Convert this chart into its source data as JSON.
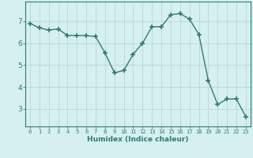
{
  "x": [
    0,
    1,
    2,
    3,
    4,
    5,
    6,
    7,
    8,
    9,
    10,
    11,
    12,
    13,
    14,
    15,
    16,
    17,
    18,
    19,
    20,
    21,
    22,
    23
  ],
  "y": [
    6.9,
    6.7,
    6.6,
    6.65,
    6.35,
    6.35,
    6.35,
    6.3,
    5.55,
    4.65,
    4.75,
    5.5,
    6.0,
    6.75,
    6.75,
    7.3,
    7.35,
    7.1,
    6.4,
    4.3,
    3.2,
    3.45,
    3.45,
    2.65
  ],
  "line_color": "#2e7d6e",
  "marker": "+",
  "marker_size": 4,
  "bg_color": "#d6f0ef",
  "grid_color": "#b8d8d4",
  "axis_color": "#2e7d6e",
  "xlabel": "Humidex (Indice chaleur)",
  "xlim": [
    -0.5,
    23.5
  ],
  "ylim": [
    2.2,
    7.9
  ],
  "yticks": [
    3,
    4,
    5,
    6,
    7
  ],
  "xticks": [
    0,
    1,
    2,
    3,
    4,
    5,
    6,
    7,
    8,
    9,
    10,
    11,
    12,
    13,
    14,
    15,
    16,
    17,
    18,
    19,
    20,
    21,
    22,
    23
  ]
}
